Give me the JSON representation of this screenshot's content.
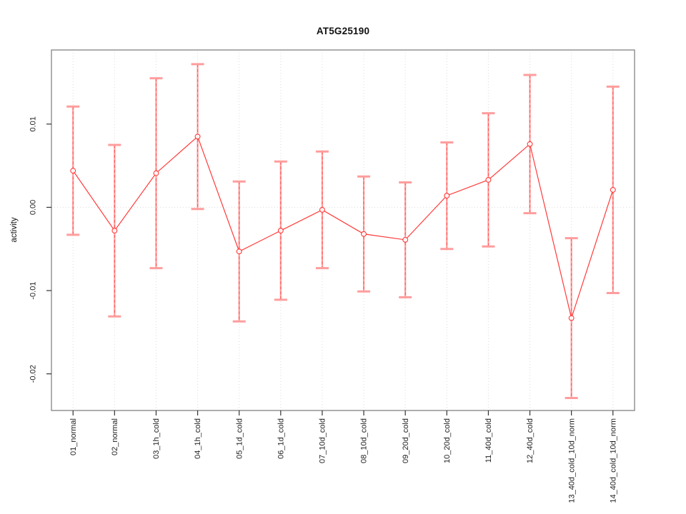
{
  "page": {
    "background": "#ffffff"
  },
  "chart_data": {
    "type": "line",
    "subtype": "points-with-error-bars",
    "title": "AT5G25190",
    "xlabel": "",
    "ylabel": "activity",
    "categories": [
      "01_normal",
      "02_normal",
      "03_1h_cold",
      "04_1h_cold",
      "05_1d_cold",
      "06_1d_cold",
      "07_10d_cold",
      "08_10d_cold",
      "09_20d_cold",
      "10_20d_cold",
      "11_40d_cold",
      "12_40d_cold",
      "13_40d_cold_10d_norm",
      "14_40d_cold_10d_norm"
    ],
    "values": [
      0.0044,
      -0.0028,
      0.0041,
      0.0085,
      -0.0053,
      -0.0028,
      -0.0003,
      -0.0032,
      -0.0039,
      0.0014,
      0.0033,
      0.0076,
      -0.0133,
      0.0021
    ],
    "errors": [
      0.0077,
      0.0103,
      0.0114,
      0.0087,
      0.0084,
      0.0083,
      0.007,
      0.0069,
      0.0069,
      0.0064,
      0.008,
      0.0083,
      0.0096,
      0.0124
    ],
    "ylim": [
      -0.0244,
      0.0189
    ],
    "yticks": [
      {
        "v": 0.01,
        "label": "0.01"
      },
      {
        "v": 0.0,
        "label": "0.00"
      },
      {
        "v": -0.01,
        "label": "-0.01"
      },
      {
        "v": -0.02,
        "label": "-0.02"
      }
    ],
    "grid": "dotted vertical gridline at each category; dotted horizontal gridline at y=0",
    "legend": "none",
    "marker": "open-circle",
    "colors": {
      "line": "#ff3b3b",
      "error_light": "#ff9d9d",
      "error_dash": "#ff5454",
      "grid": "#dcdcdc",
      "box": "#8c8c8c",
      "tick": "#333333",
      "text": "#222222"
    }
  }
}
